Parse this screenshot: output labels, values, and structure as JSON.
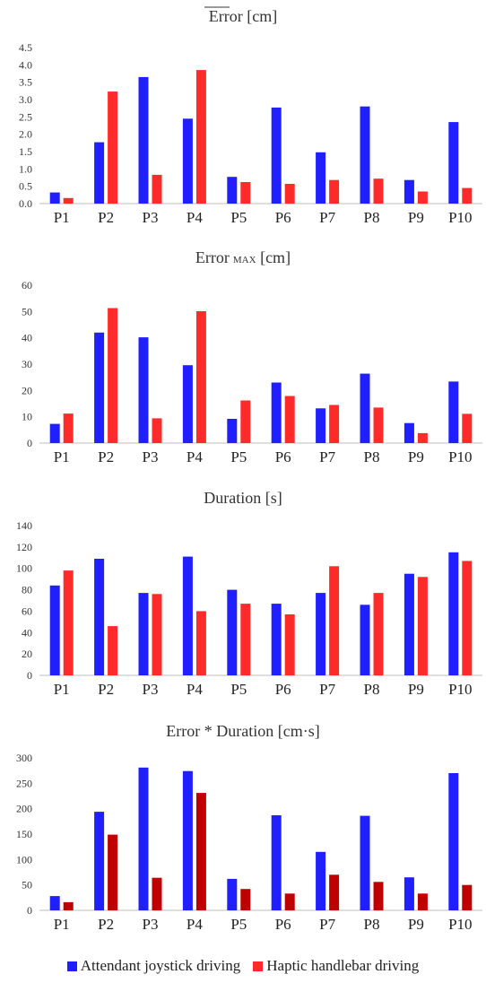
{
  "colors": {
    "series1": "#1f1fff",
    "series2": "#ff2b2b",
    "series2_alt": "#c00000",
    "axis": "#bfbfbf"
  },
  "legend": [
    {
      "name": "Attendant joystick driving",
      "color": "#1f1fff"
    },
    {
      "name": "Haptic handlebar driving",
      "color": "#ff2b2b"
    }
  ],
  "chart_data": [
    {
      "type": "bar",
      "title": "Error [cm]",
      "title_decoration": "overline on Error",
      "categories": [
        "P1",
        "P2",
        "P3",
        "P4",
        "P5",
        "P6",
        "P7",
        "P8",
        "P9",
        "P10"
      ],
      "ylim": [
        0,
        4.5
      ],
      "yticks": [
        "0.0",
        "0.5",
        "1.0",
        "1.5",
        "2.0",
        "2.5",
        "3.0",
        "3.5",
        "4.0",
        "4.5"
      ],
      "series": [
        {
          "name": "Attendant joystick driving",
          "color": "#1f1fff",
          "values": [
            0.32,
            1.77,
            3.65,
            2.45,
            0.77,
            2.77,
            1.48,
            2.8,
            0.68,
            2.35
          ]
        },
        {
          "name": "Haptic handlebar driving",
          "color": "#ff2b2b",
          "values": [
            0.16,
            3.23,
            0.83,
            3.85,
            0.62,
            0.57,
            0.68,
            0.72,
            0.35,
            0.45
          ]
        }
      ]
    },
    {
      "type": "bar",
      "title": "Error",
      "title_sub": "MAX",
      "title_tail": " [cm]",
      "categories": [
        "P1",
        "P2",
        "P3",
        "P4",
        "P5",
        "P6",
        "P7",
        "P8",
        "P9",
        "P10"
      ],
      "ylim": [
        0,
        60
      ],
      "yticks": [
        "0",
        "10",
        "20",
        "30",
        "40",
        "50",
        "60"
      ],
      "series": [
        {
          "name": "Attendant joystick driving",
          "color": "#1f1fff",
          "values": [
            7.3,
            42,
            40.2,
            29.6,
            9.2,
            23,
            13.2,
            26.4,
            7.6,
            23.4
          ]
        },
        {
          "name": "Haptic handlebar driving",
          "color": "#ff2b2b",
          "values": [
            11.2,
            51.3,
            9.4,
            50.1,
            16.2,
            17.9,
            14.5,
            13.5,
            3.8,
            11.1
          ]
        }
      ]
    },
    {
      "type": "bar",
      "title": "Duration [s]",
      "categories": [
        "P1",
        "P2",
        "P3",
        "P4",
        "P5",
        "P6",
        "P7",
        "P8",
        "P9",
        "P10"
      ],
      "ylim": [
        0,
        140
      ],
      "yticks": [
        "0",
        "20",
        "40",
        "60",
        "80",
        "100",
        "120",
        "140"
      ],
      "series": [
        {
          "name": "Attendant joystick driving",
          "color": "#1f1fff",
          "values": [
            84,
            109,
            77,
            111,
            80,
            67,
            77,
            66,
            95,
            115
          ]
        },
        {
          "name": "Haptic handlebar driving",
          "color": "#ff2b2b",
          "values": [
            98,
            46,
            76,
            60,
            67,
            57,
            102,
            77,
            92,
            107
          ]
        }
      ]
    },
    {
      "type": "bar",
      "title": "Error * Duration [cm·s]",
      "categories": [
        "P1",
        "P2",
        "P3",
        "P4",
        "P5",
        "P6",
        "P7",
        "P8",
        "P9",
        "P10"
      ],
      "ylim": [
        0,
        300
      ],
      "yticks": [
        "0",
        "50",
        "100",
        "150",
        "200",
        "250",
        "300"
      ],
      "series": [
        {
          "name": "Attendant joystick driving",
          "color": "#1f1fff",
          "values": [
            28,
            194,
            281,
            274,
            62,
            187,
            115,
            186,
            65,
            270
          ]
        },
        {
          "name": "Haptic handlebar driving",
          "color": "#c00000",
          "values": [
            16,
            149,
            64,
            231,
            42,
            33,
            70,
            56,
            33,
            50
          ]
        }
      ]
    }
  ]
}
